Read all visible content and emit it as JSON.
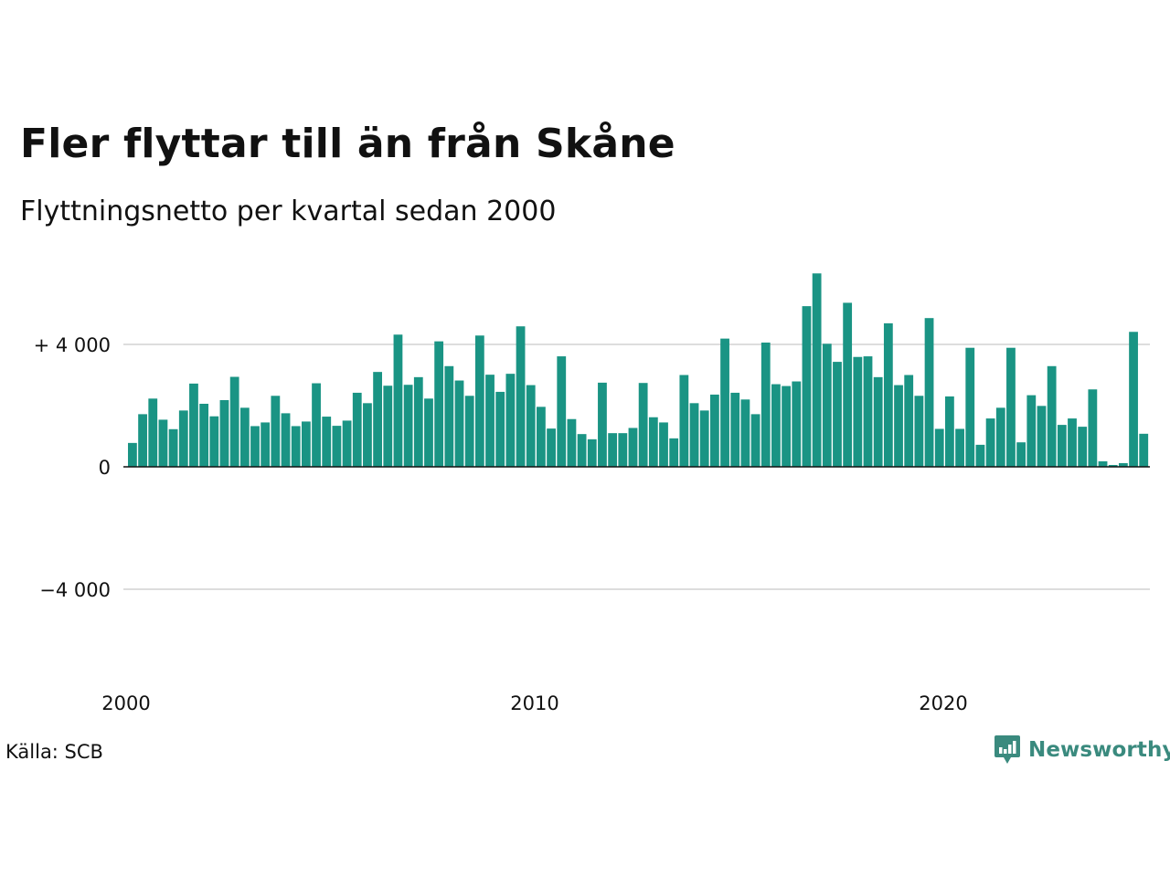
{
  "header": {
    "title": "Fler flyttar till än från Skåne",
    "subtitle": "Flyttningsnetto per kvartal sedan 2000"
  },
  "footer": {
    "source": "Källa: SCB",
    "brand": "Newsworthy"
  },
  "colors": {
    "bar": "#1a9484",
    "brand": "#3a8a7e",
    "grid": "#dddddd",
    "axis": "#111111"
  },
  "chart_data": {
    "type": "bar",
    "x_start": "2000 Q1",
    "x_ticks": [
      {
        "label": "2000",
        "quarter_index": 0
      },
      {
        "label": "2010",
        "quarter_index": 40
      },
      {
        "label": "2020",
        "quarter_index": 80
      }
    ],
    "y_ticks": [
      {
        "label": "+ 4 000",
        "value": 4000
      },
      {
        "label": "0",
        "value": 0
      },
      {
        "label": "−4 000",
        "value": -4000
      }
    ],
    "ylim": [
      -6800,
      6800
    ],
    "grid": true,
    "values": [
      780,
      1720,
      2230,
      1540,
      1230,
      1840,
      2720,
      2060,
      1650,
      2180,
      2940,
      1930,
      1330,
      1450,
      2320,
      1750,
      1330,
      1480,
      2730,
      1640,
      1340,
      1510,
      2420,
      2080,
      3100,
      2650,
      4320,
      2680,
      2930,
      2230,
      4100,
      3290,
      2820,
      2320,
      4290,
      3010,
      2450,
      3040,
      4590,
      2670,
      1960,
      1250,
      3610,
      1560,
      1070,
      900,
      2750,
      1100,
      1100,
      1270,
      2740,
      1620,
      1450,
      930,
      3000,
      2080,
      1840,
      2360,
      4190,
      2420,
      2200,
      1720,
      4060,
      2700,
      2640,
      2790,
      5250,
      6320,
      4020,
      3430,
      5360,
      3590,
      3610,
      2930,
      4690,
      2670,
      3000,
      2320,
      4860,
      1240,
      2300,
      1240,
      3890,
      720,
      1580,
      1930,
      3890,
      800,
      2340,
      1990,
      3290,
      1370,
      1580,
      1310,
      2530,
      180,
      60,
      120,
      4410,
      1080
    ]
  }
}
